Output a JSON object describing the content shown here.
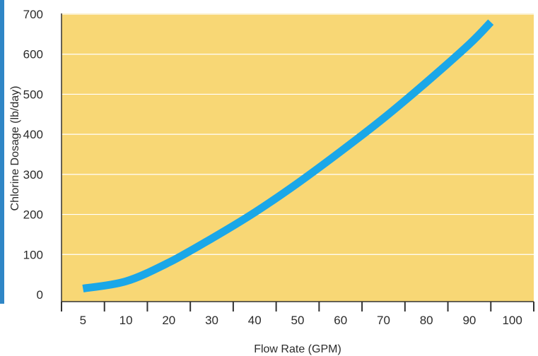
{
  "chart_data": {
    "type": "line",
    "title": "",
    "xlabel": "Flow Rate (GPM)",
    "ylabel": "Chlorine Dosage (lb/day)",
    "x_categories": [
      "5",
      "10",
      "20",
      "30",
      "40",
      "50",
      "60",
      "70",
      "80",
      "90",
      "100"
    ],
    "y_ticks": [
      "0",
      "100",
      "200",
      "300",
      "400",
      "500",
      "600",
      "700"
    ],
    "ylim": [
      0,
      700
    ],
    "grid": true,
    "legend": "none",
    "colors": {
      "plot_bg": "#f8d775",
      "line": "#1aa7e8",
      "grid": "#ffffff",
      "accent": "#2f86c6"
    },
    "series": [
      {
        "x": [
          "5",
          "10",
          "20",
          "30",
          "40",
          "50",
          "60",
          "70",
          "80",
          "90",
          "95"
        ],
        "values": [
          15,
          33,
          80,
          140,
          205,
          278,
          357,
          440,
          530,
          625,
          680
        ]
      }
    ]
  }
}
